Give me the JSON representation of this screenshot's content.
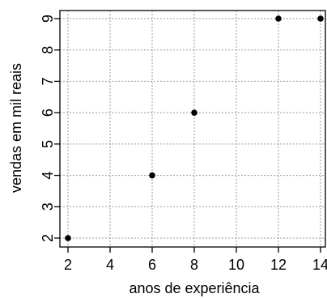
{
  "chart_data": {
    "type": "scatter",
    "title": "",
    "xlabel": "anos de experiência",
    "ylabel": "vendas em mil reais",
    "xlim": [
      2,
      14
    ],
    "ylim": [
      2,
      9
    ],
    "x_ticks": [
      "2",
      "4",
      "6",
      "8",
      "10",
      "12",
      "14"
    ],
    "y_ticks": [
      "2",
      "3",
      "4",
      "5",
      "6",
      "7",
      "8",
      "9"
    ],
    "grid": true,
    "points": [
      {
        "x": 2,
        "y": 2
      },
      {
        "x": 6,
        "y": 4
      },
      {
        "x": 8,
        "y": 6
      },
      {
        "x": 12,
        "y": 9
      },
      {
        "x": 14,
        "y": 9
      }
    ],
    "colors": {
      "points": "#000000",
      "grid": "#9a9a9a",
      "axes": "#000000"
    }
  }
}
